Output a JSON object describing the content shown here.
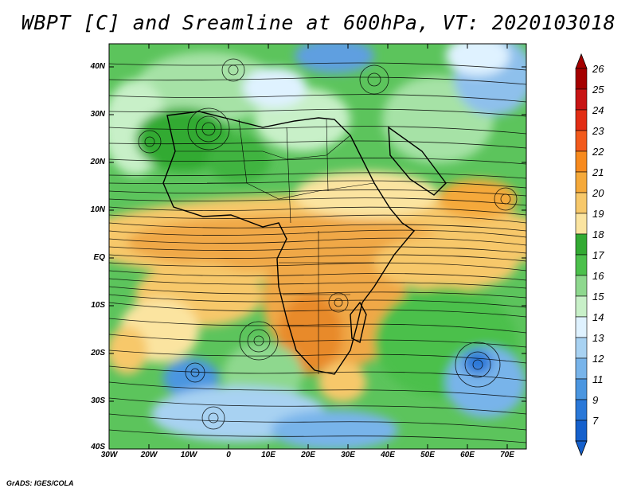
{
  "title": "WBPT [C] and Sreamline at 600hPa, VT: 2020103018",
  "credit": "GrADS: IGES/COLA",
  "lat_labels": [
    "40N",
    "30N",
    "20N",
    "10N",
    "EQ",
    "10S",
    "20S",
    "30S",
    "40S"
  ],
  "lon_labels": [
    "30W",
    "20W",
    "10W",
    "0",
    "10E",
    "20E",
    "30E",
    "40E",
    "50E",
    "60E",
    "70E"
  ],
  "colorbar": {
    "labels": [
      "26",
      "25",
      "24",
      "23",
      "22",
      "21",
      "20",
      "19",
      "18",
      "17",
      "16",
      "15",
      "14",
      "13",
      "12",
      "11",
      "9",
      "7"
    ],
    "colors": [
      "#a50000",
      "#c81414",
      "#e22d14",
      "#f25a1c",
      "#f78a1e",
      "#f5a93a",
      "#f7c86a",
      "#fbe4a0",
      "#33aa33",
      "#4cc04c",
      "#8ed88e",
      "#c8f0c8",
      "#dff2ff",
      "#a8d2f2",
      "#78b4ea",
      "#4b96e0",
      "#2a78d8",
      "#1560cc"
    ]
  }
}
